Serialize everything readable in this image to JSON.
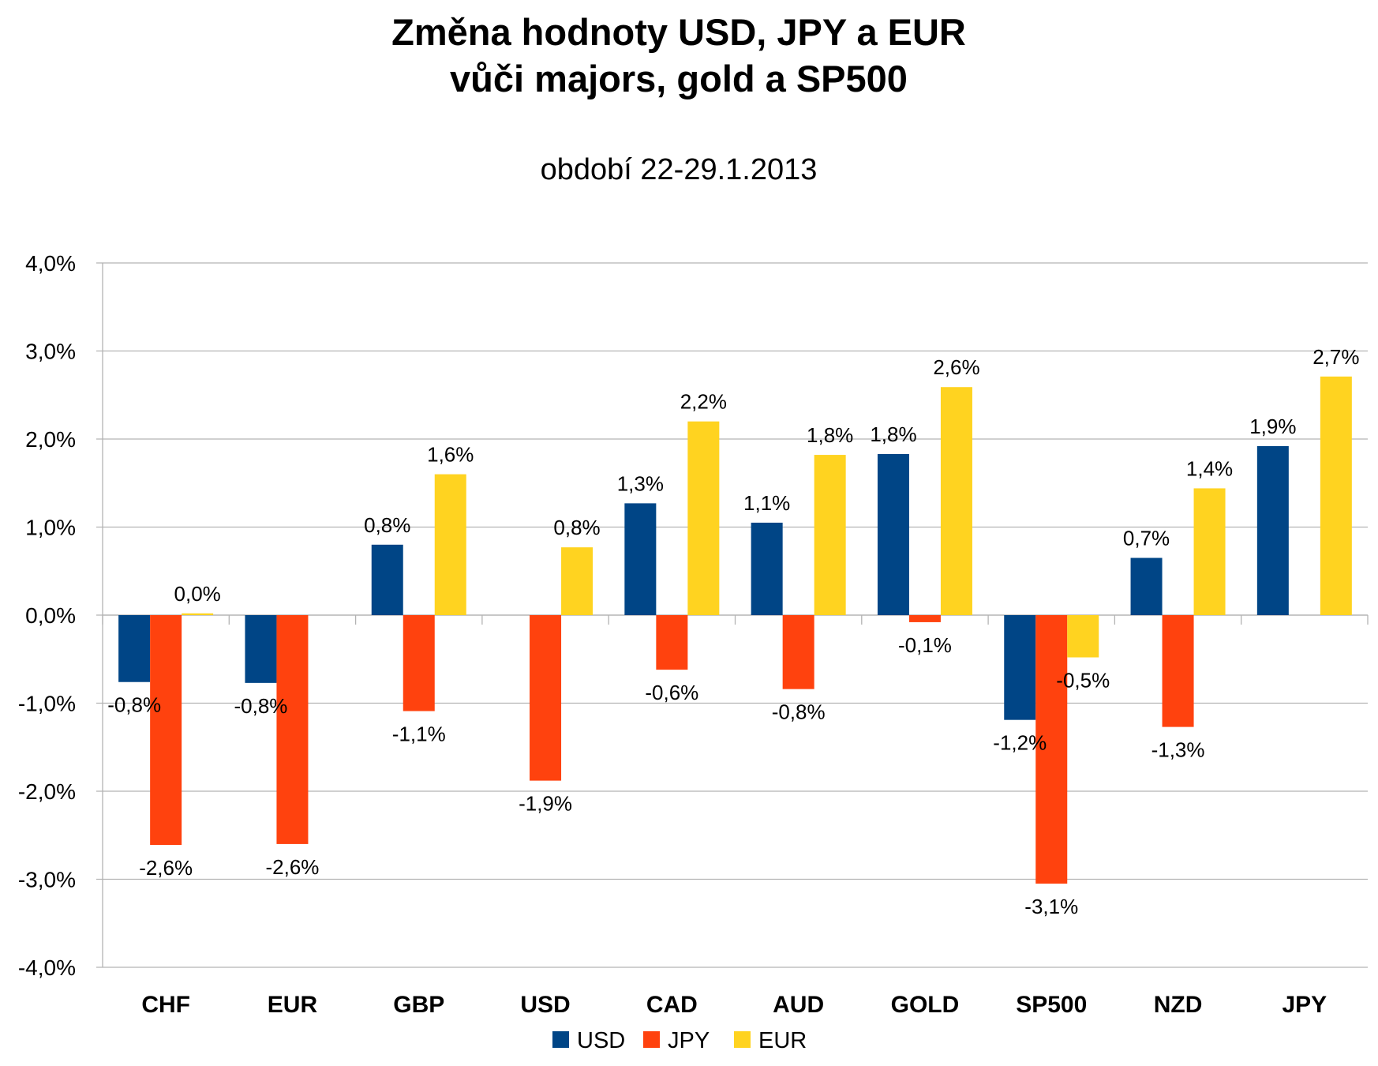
{
  "chart_data": {
    "type": "bar",
    "title_lines": [
      "Změna hodnoty USD, JPY a EUR",
      "vůči majors, gold a SP500"
    ],
    "subtitle": "období 22-29.1.2013",
    "categories": [
      "CHF",
      "EUR",
      "GBP",
      "USD",
      "CAD",
      "AUD",
      "GOLD",
      "SP500",
      "NZD",
      "JPY"
    ],
    "series": [
      {
        "name": "USD",
        "color": "#004586",
        "values": [
          -0.76,
          -0.77,
          0.8,
          null,
          1.27,
          1.05,
          1.83,
          -1.19,
          0.65,
          1.92
        ],
        "labels": [
          "-0,8%",
          "-0,8%",
          "0,8%",
          "",
          "1,3%",
          "1,1%",
          "1,8%",
          "-1,2%",
          "0,7%",
          "1,9%"
        ]
      },
      {
        "name": "JPY",
        "color": "#ff420e",
        "values": [
          -2.61,
          -2.6,
          -1.09,
          -1.88,
          -0.62,
          -0.84,
          -0.08,
          -3.05,
          -1.27,
          null
        ],
        "labels": [
          "-2,6%",
          "-2,6%",
          "-1,1%",
          "-1,9%",
          "-0,6%",
          "-0,8%",
          "-0,1%",
          "-3,1%",
          "-1,3%",
          ""
        ]
      },
      {
        "name": "EUR",
        "color": "#ffd320",
        "values": [
          0.02,
          null,
          1.6,
          0.77,
          2.2,
          1.82,
          2.59,
          -0.48,
          1.44,
          2.71
        ],
        "labels": [
          "0,0%",
          "",
          "1,6%",
          "0,8%",
          "2,2%",
          "1,8%",
          "2,6%",
          "-0,5%",
          "1,4%",
          "2,7%"
        ]
      }
    ],
    "ylim": [
      -4,
      4
    ],
    "yticks": [
      4,
      3,
      2,
      1,
      0,
      -1,
      -2,
      -3,
      -4
    ],
    "ytick_labels": [
      "4,0%",
      "3,0%",
      "2,0%",
      "1,0%",
      "0,0%",
      "-1,0%",
      "-2,0%",
      "-3,0%",
      "-4,0%"
    ],
    "grid": true,
    "legend_position": "bottom"
  }
}
